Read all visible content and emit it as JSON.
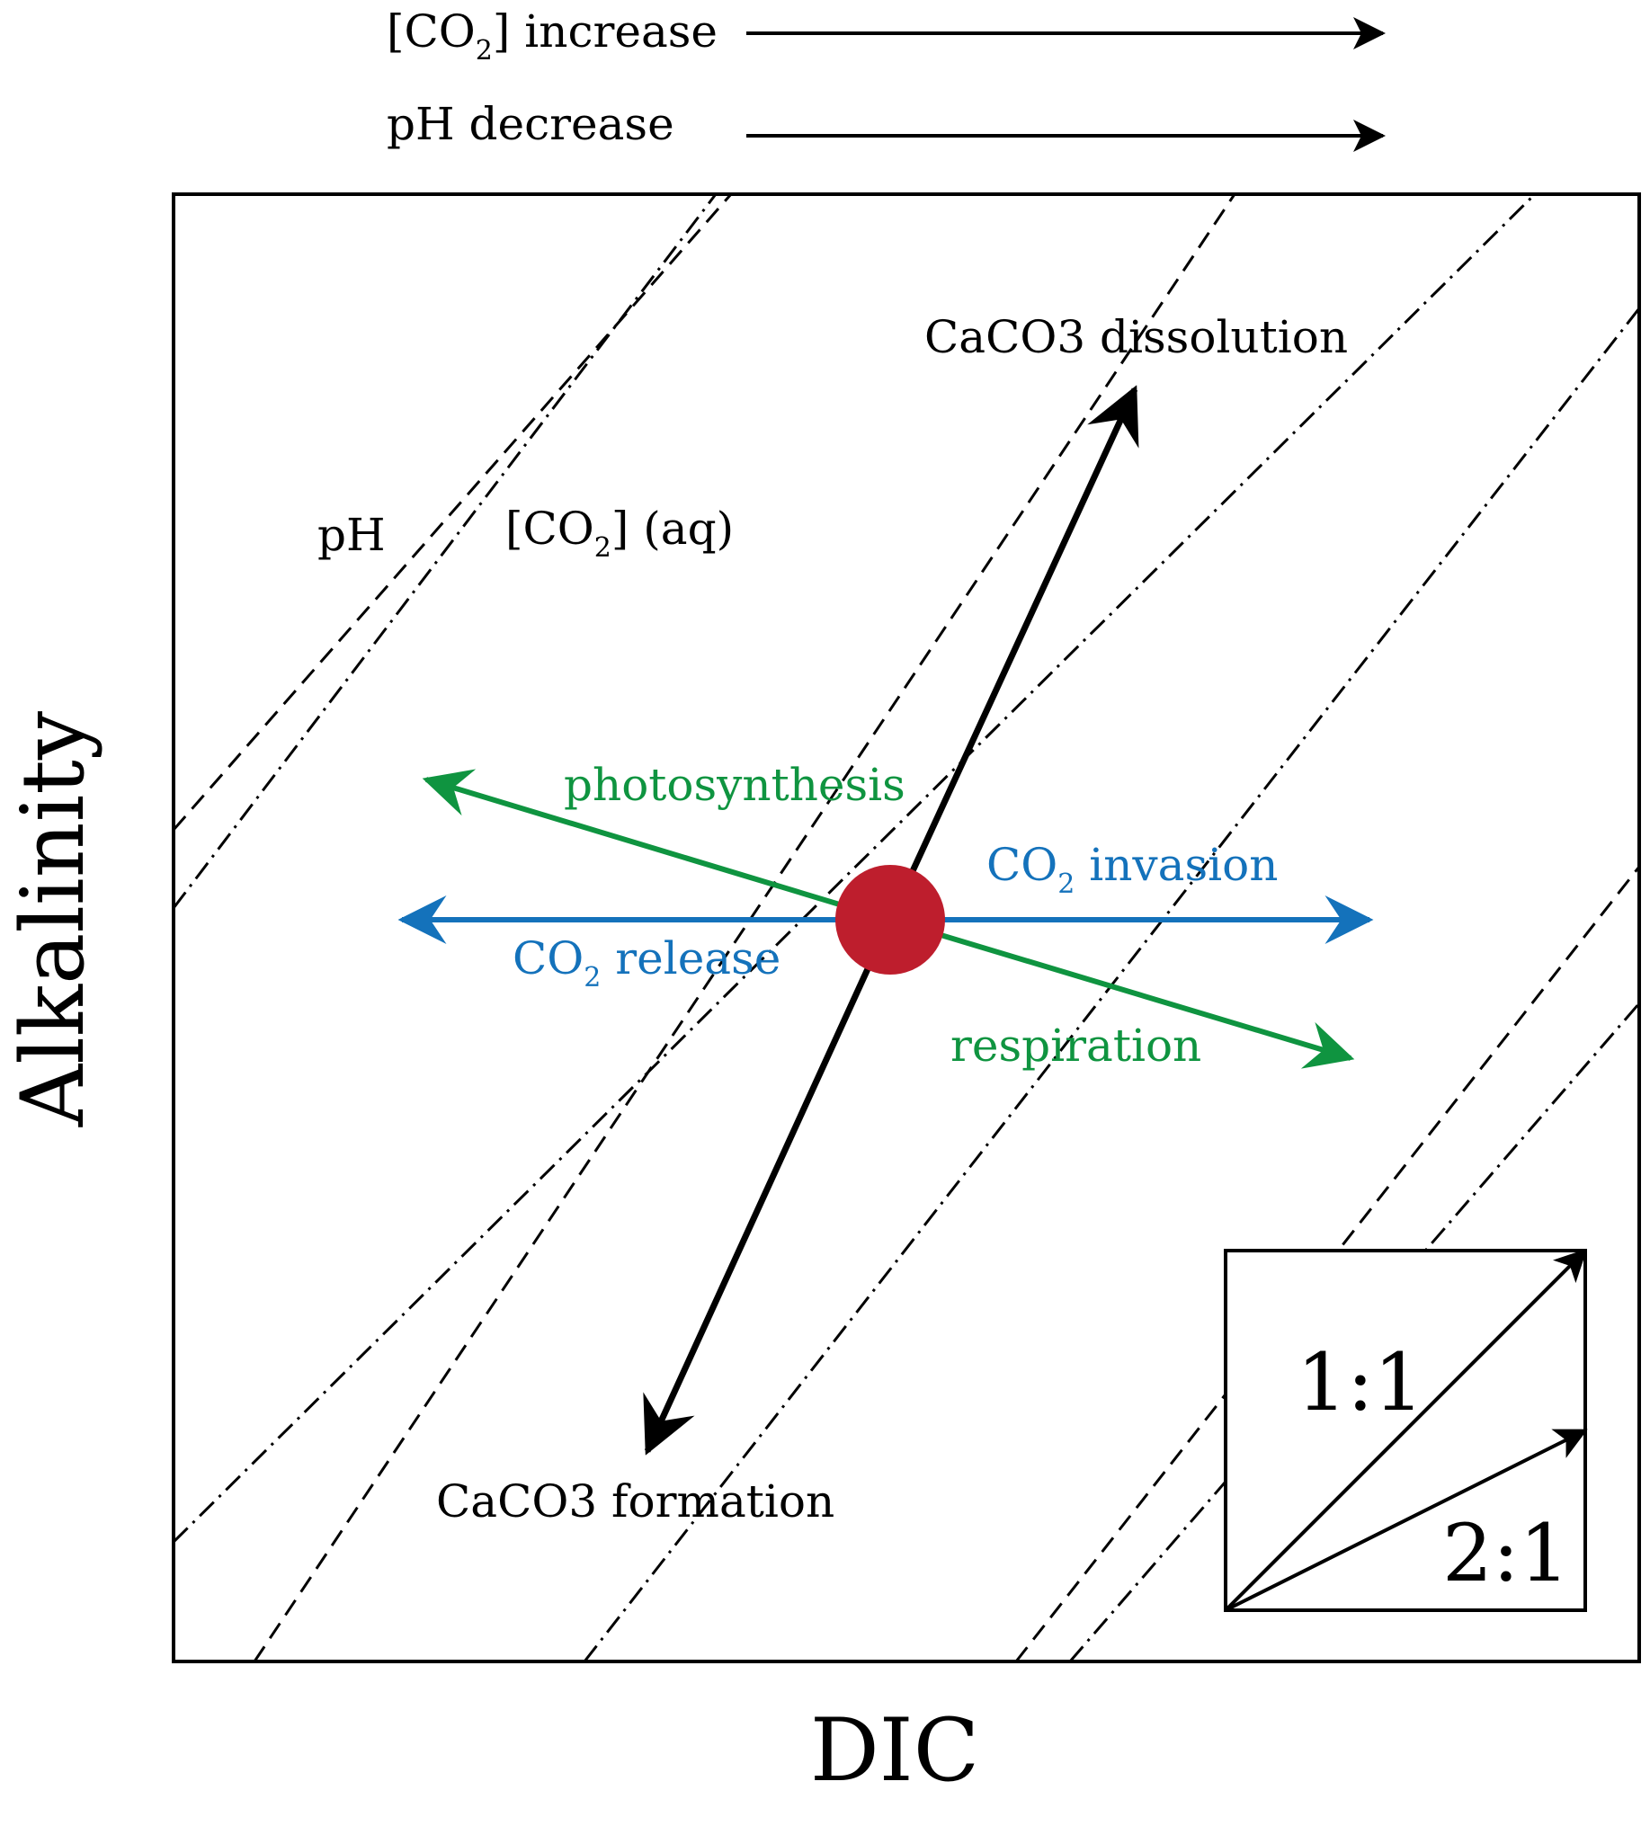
{
  "header": {
    "co2_label": "[CO",
    "co2_sub": "2",
    "co2_after": "] increase",
    "ph_label": "pH decrease"
  },
  "axes": {
    "x_label": "DIC",
    "y_label": "Alkalinity"
  },
  "isolines": {
    "ph_label": "pH",
    "co2_label": "[CO",
    "co2_sub": "2",
    "co2_after": "] (aq)"
  },
  "processes": {
    "caco3_dissolution": "CaCO3 dissolution",
    "caco3_formation": "CaCO3 formation",
    "photosynthesis": "photosynthesis",
    "respiration": "respiration",
    "co2_invasion_pre": "CO",
    "co2_invasion_sub": "2",
    "co2_invasion_post": " invasion",
    "co2_release_pre": "CO",
    "co2_release_sub": "2",
    "co2_release_post": " release"
  },
  "legend": {
    "ratio_1": "1:1",
    "ratio_2": "2:1"
  },
  "colors": {
    "black": "#000000",
    "green": "#0f9440",
    "blue": "#1472bb",
    "red": "#be1e2d"
  }
}
